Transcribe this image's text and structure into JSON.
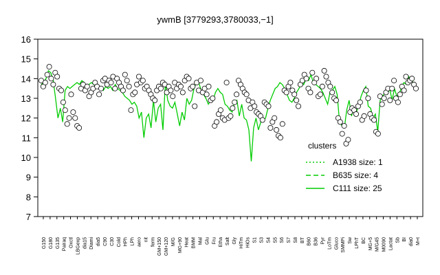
{
  "chart_data": {
    "type": "line",
    "title": "ywmB [3779293,3780033,−1]",
    "xlabel": "",
    "ylabel": "",
    "ylim": [
      7,
      16
    ],
    "yticks": [
      7,
      8,
      9,
      10,
      11,
      12,
      13,
      14,
      15,
      16
    ],
    "grid": false,
    "legend_position": "right",
    "x_tick_labels": [
      "G150",
      "G180",
      "G135",
      "Pairaq",
      "Oxctl",
      "LBGexp",
      "dia15",
      "Diami",
      "dia5",
      "C90",
      "C30",
      "Cold",
      "HPh",
      "LPh",
      "aero",
      "nit",
      "ferm",
      "GM+150",
      "GM+120",
      "M/G",
      "MG+90",
      "Heat",
      "BMM",
      "Mal",
      "Glu",
      "Fru",
      "Etha",
      "Salt",
      "Gly",
      "HiTm",
      "HiOs",
      "S1",
      "S3",
      "S4",
      "S5",
      "S6",
      "S7",
      "S8",
      "BT",
      "B60",
      "B36",
      "Pyr",
      "LoTm",
      "Gluco",
      "SMMPi",
      "Sw",
      "LPhT",
      "BC",
      "MG+5",
      "M/G45",
      "M0090",
      "Lactat",
      "Sb",
      "BI",
      "dia0",
      "M+t"
    ],
    "series": [
      {
        "name": "A1938 size: 1",
        "style": "dotted",
        "color": "#00cc00"
      },
      {
        "name": "B635 size: 4",
        "style": "dashed",
        "color": "#00cc00"
      },
      {
        "name": "C111 size: 25",
        "style": "solid",
        "color": "#00cc00",
        "mean": [
          13.7,
          13.8,
          14.0,
          14.4,
          14.3,
          13.9,
          13.0,
          12.0,
          12.5,
          11.8,
          13.4,
          13.6,
          13.5,
          13.6,
          13.7,
          13.8,
          13.7,
          13.9,
          13.8,
          13.6,
          13.7,
          13.8,
          13.7,
          13.6,
          13.6,
          13.5,
          13.4,
          13.6,
          13.5,
          13.6,
          13.4,
          13.7,
          13.5,
          13.4,
          13.3,
          13.1,
          13.0,
          12.9,
          12.7,
          12.8,
          12.6,
          12.0,
          12.3,
          11.0,
          12.0,
          12.2,
          11.5,
          12.9,
          11.8,
          12.5,
          12.7,
          11.4,
          13.8,
          12.9,
          12.6,
          12.5,
          12.8,
          12.2,
          11.6,
          12.3,
          11.9,
          13.0,
          12.7,
          12.9,
          13.5,
          13.8,
          13.8,
          13.4,
          13.2,
          13.0,
          12.7,
          12.9,
          12.9,
          13.3,
          13.5,
          13.3,
          13.2,
          12.7,
          12.6,
          12.4,
          12.3,
          12.8,
          12.9,
          12.1,
          12.7,
          12.0,
          11.9,
          11.4,
          9.8,
          11.5,
          12.0,
          11.4,
          11.8,
          11.9,
          12.0,
          12.5,
          12.9,
          13.2,
          13.5,
          13.6,
          13.8,
          13.7,
          13.5,
          13.2,
          12.9,
          12.8,
          13.0,
          13.3,
          13.5,
          13.8,
          13.7,
          14.0,
          13.9,
          14.2,
          13.8,
          13.7,
          13.6,
          13.5,
          13.3,
          13.0,
          12.7,
          13.3,
          13.4,
          13.6,
          13.2,
          11.8,
          11.6,
          11.5,
          12.4,
          12.9,
          12.1,
          12.5,
          12.3,
          12.6,
          13.1,
          13.4,
          13.6,
          12.6,
          12.5,
          12.0,
          12.2,
          11.3,
          12.9,
          13.1,
          13.3,
          13.2,
          13.5,
          12.9,
          13.5,
          13.1,
          13.2,
          13.6,
          13.8,
          13.7,
          14.1,
          13.9,
          13.8,
          13.7
        ],
        "points": [
          13.9,
          13.6,
          13.8,
          14.2,
          14.6,
          14.0,
          13.7,
          14.3,
          14.1,
          13.5,
          13.4,
          12.8,
          12.4,
          11.7,
          12.0,
          13.2,
          12.3,
          12.0,
          11.6,
          11.5,
          13.5,
          13.7,
          13.4,
          13.6,
          13.1,
          13.3,
          13.5,
          13.8,
          13.6,
          13.2,
          13.5,
          13.9,
          14.0,
          13.7,
          13.9,
          13.8,
          14.1,
          13.5,
          14.0,
          13.8,
          13.6,
          13.4,
          14.2,
          13.9,
          13.6,
          12.4,
          13.2,
          13.3,
          13.7,
          14.1,
          13.8,
          13.9,
          13.5,
          13.6,
          13.4,
          13.2,
          13.0,
          12.9,
          13.4,
          13.6,
          13.5,
          13.8,
          13.7,
          13.3,
          13.6,
          13.4,
          13.1,
          13.8,
          13.5,
          13.7,
          13.6,
          13.3,
          13.9,
          14.1,
          14.0,
          13.5,
          13.6,
          12.6,
          13.8,
          13.4,
          13.9,
          13.3,
          13.5,
          13.2,
          13.6,
          12.9,
          13.0,
          11.6,
          11.8,
          12.2,
          12.4,
          12.0,
          11.9,
          13.8,
          12.0,
          12.1,
          12.5,
          12.8,
          13.2,
          13.9,
          13.7,
          13.5,
          13.3,
          13.2,
          12.9,
          12.5,
          12.8,
          12.6,
          12.3,
          12.2,
          12.1,
          11.9,
          12.8,
          12.7,
          12.6,
          11.5,
          11.8,
          12.0,
          11.4,
          11.1,
          11.0,
          11.7,
          13.4,
          13.3,
          13.6,
          13.8,
          13.4,
          13.2,
          12.9,
          12.6,
          13.7,
          13.9,
          14.2,
          14.0,
          13.5,
          13.3,
          14.3,
          13.8,
          14.0,
          13.1,
          13.2,
          13.6,
          14.4,
          14.1,
          13.8,
          13.6,
          13.3,
          13.0,
          12.9,
          12.0,
          11.8,
          11.2,
          11.6,
          10.7,
          10.9,
          12.3,
          12.5,
          12.4,
          12.2,
          12.6,
          12.8,
          11.9,
          12.1,
          13.4,
          13.0,
          12.2,
          12.0,
          11.9,
          11.3,
          11.2,
          13.1,
          12.7,
          13.0,
          13.3,
          13.5,
          12.9,
          13.5,
          13.9,
          13.0,
          12.8,
          13.2,
          13.6,
          13.4,
          14.1,
          13.8,
          13.9,
          14.0,
          13.7,
          13.5
        ]
      }
    ]
  }
}
